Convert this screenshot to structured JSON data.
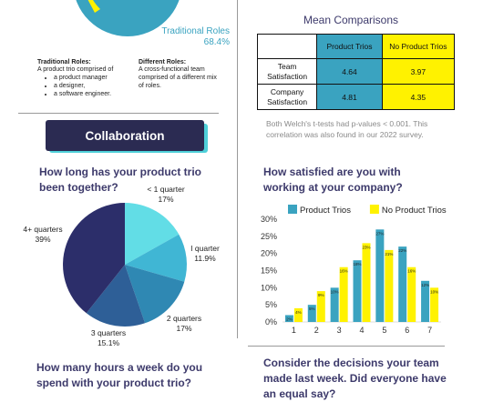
{
  "top_pie": {
    "trad_label": "Traditional Roles",
    "trad_value": "68.4%",
    "colors": {
      "trad": "#3aa3c0",
      "diff": "#fff200"
    }
  },
  "definitions": {
    "traditional_title": "Traditional Roles:",
    "traditional_intro": "A product trio comprised of",
    "traditional_items": [
      "a product manager",
      "a designer,",
      "a software engineer."
    ],
    "different_title": "Different Roles:",
    "different_text": "A cross-functional team comprised of a different mix of roles."
  },
  "collaboration_button": "Collaboration",
  "mean_comparisons": {
    "title": "Mean Comparisons",
    "col1": "Product Trios",
    "col2": "No Product Trios",
    "rows": [
      {
        "label": "Team Satisfaction",
        "v1": "4.64",
        "v2": "3.97"
      },
      {
        "label": "Company Satisfaction",
        "v1": "4.81",
        "v2": "4.35"
      }
    ],
    "note": "Both Welch's t-tests had p-values < 0.001. This correlation was also found in our 2022 survey."
  },
  "questions": {
    "q_how_long": "How long has your product trio been together?",
    "q_satisfied": "How satisfied are you with working at your company?",
    "q_hours": "How many hours a week do you spend with your product trio?",
    "q_decisions": "Consider the decisions your team made last week. Did everyone have an equal say?"
  },
  "duration_pie": {
    "labels": [
      {
        "name": "< 1 quarter",
        "value": "17%"
      },
      {
        "name": "I quarter",
        "value": "11.9%"
      },
      {
        "name": "2 quarters",
        "value": "17%"
      },
      {
        "name": "3 quarters",
        "value": "15.1%"
      },
      {
        "name": "4+ quarters",
        "value": "39%"
      }
    ]
  },
  "chart_data": {
    "type": "bar",
    "categories": [
      "1",
      "2",
      "3",
      "4",
      "5",
      "6",
      "7"
    ],
    "series": [
      {
        "name": "Product Trios",
        "color": "#3aa3c0",
        "values": [
          2,
          5,
          10,
          18,
          27,
          22,
          12
        ]
      },
      {
        "name": "No Product Trios",
        "color": "#fff200",
        "values": [
          4,
          9,
          16,
          23,
          21,
          16,
          10
        ]
      }
    ],
    "y_ticks": [
      "0%",
      "5%",
      "10%",
      "15%",
      "20%",
      "25%",
      "30%"
    ],
    "ylim": [
      0,
      30
    ],
    "legend": "top"
  }
}
